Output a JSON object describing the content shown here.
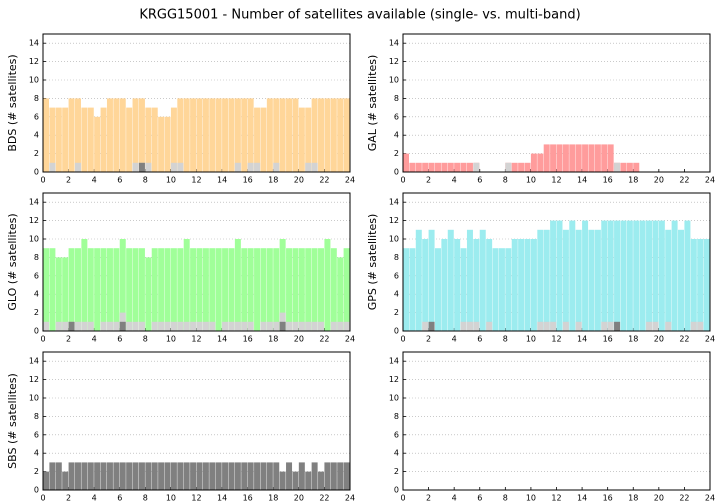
{
  "title": "KRGG15001 - Number of satellites available (single- vs. multi-band)",
  "chart_data": [
    {
      "type": "histogram",
      "ylabel": "BDS (# satellites)",
      "xlim": [
        0,
        24
      ],
      "ylim": [
        0,
        15
      ],
      "xticks": [
        0,
        2,
        4,
        6,
        8,
        10,
        12,
        14,
        16,
        18,
        20,
        22,
        24
      ],
      "yticks": [
        0,
        2,
        4,
        6,
        8,
        10,
        12,
        14
      ],
      "grid": true,
      "bins": [
        0,
        0.5,
        1,
        1.5,
        2,
        2.5,
        3,
        3.5,
        4,
        4.5,
        5,
        5.5,
        6,
        6.5,
        7,
        7.5,
        8,
        8.5,
        9,
        9.5,
        10,
        10.5,
        11,
        11.5,
        12,
        12.5,
        13,
        13.5,
        14,
        14.5,
        15,
        15.5,
        16,
        16.5,
        17,
        17.5,
        18,
        18.5,
        19,
        19.5,
        20,
        20.5,
        21,
        21.5,
        22,
        22.5,
        23,
        23.5,
        24
      ],
      "series": [
        {
          "color": "#ffd699",
          "values": [
            8,
            7,
            7,
            7,
            8,
            8,
            7,
            7,
            6,
            7,
            8,
            8,
            8,
            7,
            8,
            8,
            7,
            7,
            6,
            6,
            7,
            8,
            8,
            8,
            8,
            8,
            8,
            8,
            8,
            8,
            8,
            8,
            8,
            7,
            7,
            8,
            8,
            8,
            8,
            8,
            7,
            7,
            8,
            8,
            8,
            8,
            8,
            8
          ]
        },
        {
          "color": "#d3d3d3",
          "values": [
            0,
            1,
            0,
            0,
            0,
            1,
            0,
            0,
            0,
            0,
            0,
            0,
            0,
            0,
            1,
            1,
            1,
            0,
            0,
            0,
            1,
            1,
            0,
            0,
            0,
            0,
            0,
            0,
            0,
            0,
            1,
            0,
            1,
            1,
            0,
            0,
            1,
            0,
            0,
            0,
            0,
            1,
            1,
            0,
            0,
            0,
            0,
            0
          ]
        },
        {
          "color": "#808080",
          "values": [
            0,
            0,
            0,
            0,
            0,
            0,
            0,
            0,
            0,
            0,
            0,
            0,
            0,
            0,
            0,
            1,
            0,
            0,
            0,
            0,
            0,
            0,
            0,
            0,
            0,
            0,
            0,
            0,
            0,
            0,
            0,
            0,
            0,
            0,
            0,
            0,
            0,
            0,
            0,
            0,
            0,
            0,
            0,
            0,
            0,
            0,
            0,
            0
          ]
        }
      ]
    },
    {
      "type": "histogram",
      "ylabel": "GAL (# satellites)",
      "xlim": [
        0,
        24
      ],
      "ylim": [
        0,
        15
      ],
      "xticks": [
        0,
        2,
        4,
        6,
        8,
        10,
        12,
        14,
        16,
        18,
        20,
        22,
        24
      ],
      "yticks": [
        0,
        2,
        4,
        6,
        8,
        10,
        12,
        14
      ],
      "grid": true,
      "bins": [
        0,
        0.5,
        1,
        1.5,
        2,
        2.5,
        3,
        3.5,
        4,
        4.5,
        5,
        5.5,
        6,
        6.5,
        7,
        7.5,
        8,
        8.5,
        9,
        9.5,
        10,
        10.5,
        11,
        11.5,
        12,
        12.5,
        13,
        13.5,
        14,
        14.5,
        15,
        15.5,
        16,
        16.5,
        17,
        17.5,
        18,
        18.5,
        19,
        19.5,
        20,
        20.5,
        21,
        21.5,
        22,
        22.5,
        23,
        23.5,
        24
      ],
      "series": [
        {
          "color": "#ff9c9c",
          "values": [
            2,
            1,
            1,
            1,
            1,
            1,
            1,
            1,
            1,
            1,
            1,
            1,
            0,
            0,
            0,
            0,
            1,
            1,
            1,
            1,
            2,
            2,
            3,
            3,
            3,
            3,
            3,
            3,
            3,
            3,
            3,
            3,
            3,
            1,
            1,
            1,
            1,
            0,
            0,
            0,
            0,
            0,
            0,
            0,
            0,
            0,
            0,
            0
          ]
        },
        {
          "color": "#d3d3d3",
          "values": [
            0,
            0,
            0,
            0,
            0,
            0,
            0,
            0,
            0,
            0,
            0,
            1,
            0,
            0,
            0,
            0,
            1,
            0,
            0,
            0,
            0,
            0,
            0,
            0,
            0,
            0,
            0,
            0,
            0,
            0,
            0,
            0,
            0,
            1,
            0,
            0,
            0,
            0,
            0,
            0,
            0,
            0,
            0,
            0,
            0,
            0,
            0,
            0
          ]
        },
        {
          "color": "#808080",
          "values": [
            0,
            0,
            0,
            0,
            0,
            0,
            0,
            0,
            0,
            0,
            0,
            0,
            0,
            0,
            0,
            0,
            0,
            0,
            0,
            0,
            0,
            0,
            0,
            0,
            0,
            0,
            0,
            0,
            0,
            0,
            0,
            0,
            0,
            0,
            0,
            0,
            0,
            0,
            0,
            0,
            0,
            0,
            0,
            0,
            0,
            0,
            0,
            0
          ]
        }
      ]
    },
    {
      "type": "histogram",
      "ylabel": "GLO (# satellites)",
      "xlim": [
        0,
        24
      ],
      "ylim": [
        0,
        15
      ],
      "xticks": [
        0,
        2,
        4,
        6,
        8,
        10,
        12,
        14,
        16,
        18,
        20,
        22,
        24
      ],
      "yticks": [
        0,
        2,
        4,
        6,
        8,
        10,
        12,
        14
      ],
      "grid": true,
      "bins": [
        0,
        0.5,
        1,
        1.5,
        2,
        2.5,
        3,
        3.5,
        4,
        4.5,
        5,
        5.5,
        6,
        6.5,
        7,
        7.5,
        8,
        8.5,
        9,
        9.5,
        10,
        10.5,
        11,
        11.5,
        12,
        12.5,
        13,
        13.5,
        14,
        14.5,
        15,
        15.5,
        16,
        16.5,
        17,
        17.5,
        18,
        18.5,
        19,
        19.5,
        20,
        20.5,
        21,
        21.5,
        22,
        22.5,
        23,
        23.5,
        24
      ],
      "series": [
        {
          "color": "#a0ff99",
          "values": [
            9,
            9,
            8,
            8,
            9,
            9,
            10,
            9,
            9,
            9,
            9,
            9,
            10,
            9,
            9,
            9,
            8,
            9,
            9,
            9,
            9,
            9,
            10,
            9,
            9,
            9,
            9,
            9,
            9,
            9,
            10,
            9,
            9,
            9,
            9,
            9,
            9,
            10,
            9,
            9,
            9,
            9,
            9,
            9,
            10,
            9,
            8,
            9
          ]
        },
        {
          "color": "#d3d3d3",
          "values": [
            1,
            0,
            1,
            1,
            1,
            1,
            1,
            1,
            0,
            1,
            1,
            1,
            2,
            1,
            1,
            1,
            0,
            1,
            1,
            1,
            1,
            1,
            1,
            1,
            1,
            1,
            1,
            0,
            1,
            1,
            1,
            1,
            1,
            0,
            1,
            1,
            1,
            2,
            1,
            1,
            1,
            1,
            1,
            1,
            0,
            1,
            1,
            1
          ]
        },
        {
          "color": "#808080",
          "values": [
            0,
            0,
            0,
            0,
            1,
            0,
            0,
            0,
            0,
            0,
            0,
            0,
            1,
            0,
            0,
            0,
            0,
            0,
            0,
            0,
            0,
            0,
            0,
            0,
            0,
            0,
            0,
            0,
            0,
            0,
            0,
            0,
            0,
            0,
            0,
            0,
            0,
            1,
            0,
            0,
            0,
            0,
            0,
            0,
            0,
            0,
            0,
            0
          ]
        }
      ]
    },
    {
      "type": "histogram",
      "ylabel": "GPS (# satellites)",
      "xlim": [
        0,
        24
      ],
      "ylim": [
        0,
        15
      ],
      "xticks": [
        0,
        2,
        4,
        6,
        8,
        10,
        12,
        14,
        16,
        18,
        20,
        22,
        24
      ],
      "yticks": [
        0,
        2,
        4,
        6,
        8,
        10,
        12,
        14
      ],
      "grid": true,
      "bins": [
        0,
        0.5,
        1,
        1.5,
        2,
        2.5,
        3,
        3.5,
        4,
        4.5,
        5,
        5.5,
        6,
        6.5,
        7,
        7.5,
        8,
        8.5,
        9,
        9.5,
        10,
        10.5,
        11,
        11.5,
        12,
        12.5,
        13,
        13.5,
        14,
        14.5,
        15,
        15.5,
        16,
        16.5,
        17,
        17.5,
        18,
        18.5,
        19,
        19.5,
        20,
        20.5,
        21,
        21.5,
        22,
        22.5,
        23,
        23.5,
        24
      ],
      "series": [
        {
          "color": "#9cecef",
          "values": [
            9,
            9,
            11,
            10,
            11,
            9,
            10,
            11,
            10,
            9,
            11,
            10,
            11,
            10,
            9,
            9,
            9,
            10,
            10,
            10,
            10,
            11,
            11,
            12,
            12,
            11,
            12,
            11,
            12,
            11,
            11,
            12,
            12,
            12,
            12,
            12,
            12,
            12,
            12,
            12,
            12,
            11,
            12,
            11,
            12,
            10,
            10,
            10
          ]
        },
        {
          "color": "#d3d3d3",
          "values": [
            0,
            0,
            0,
            1,
            0,
            0,
            0,
            0,
            0,
            1,
            1,
            1,
            0,
            1,
            0,
            0,
            0,
            0,
            0,
            0,
            0,
            1,
            1,
            1,
            0,
            1,
            0,
            1,
            0,
            0,
            0,
            1,
            1,
            0,
            0,
            0,
            0,
            0,
            1,
            1,
            0,
            1,
            0,
            0,
            0,
            1,
            1,
            0
          ]
        },
        {
          "color": "#808080",
          "values": [
            0,
            0,
            0,
            0,
            1,
            0,
            0,
            0,
            0,
            0,
            0,
            0,
            0,
            0,
            0,
            0,
            0,
            0,
            0,
            0,
            0,
            0,
            0,
            0,
            0,
            0,
            0,
            0,
            0,
            0,
            0,
            0,
            0,
            1,
            0,
            0,
            0,
            0,
            0,
            0,
            0,
            0,
            0,
            0,
            0,
            0,
            0,
            0
          ]
        }
      ]
    },
    {
      "type": "histogram",
      "ylabel": "SBS (# satellites)",
      "xlim": [
        0,
        24
      ],
      "ylim": [
        0,
        15
      ],
      "xticks": [
        0,
        2,
        4,
        6,
        8,
        10,
        12,
        14,
        16,
        18,
        20,
        22,
        24
      ],
      "yticks": [
        0,
        2,
        4,
        6,
        8,
        10,
        12,
        14
      ],
      "grid": true,
      "bins": [
        0,
        0.5,
        1,
        1.5,
        2,
        2.5,
        3,
        3.5,
        4,
        4.5,
        5,
        5.5,
        6,
        6.5,
        7,
        7.5,
        8,
        8.5,
        9,
        9.5,
        10,
        10.5,
        11,
        11.5,
        12,
        12.5,
        13,
        13.5,
        14,
        14.5,
        15,
        15.5,
        16,
        16.5,
        17,
        17.5,
        18,
        18.5,
        19,
        19.5,
        20,
        20.5,
        21,
        21.5,
        22,
        22.5,
        23,
        23.5,
        24
      ],
      "series": [
        {
          "color": "#808080",
          "values": [
            2,
            3,
            3,
            2,
            3,
            3,
            3,
            3,
            3,
            3,
            3,
            3,
            3,
            3,
            3,
            3,
            3,
            3,
            3,
            3,
            3,
            3,
            3,
            3,
            3,
            3,
            3,
            3,
            3,
            3,
            3,
            3,
            3,
            3,
            3,
            3,
            3,
            2,
            3,
            2,
            3,
            2,
            3,
            2,
            3,
            3,
            3,
            3
          ]
        }
      ]
    },
    {
      "type": "histogram",
      "xlim": [
        0,
        24
      ],
      "ylim": [
        0,
        15
      ],
      "xticks": [
        0,
        2,
        4,
        6,
        8,
        10,
        12,
        14,
        16,
        18,
        20,
        22,
        24
      ],
      "yticks": [
        0,
        2,
        4,
        6,
        8,
        10,
        12,
        14
      ],
      "grid": true
    }
  ]
}
